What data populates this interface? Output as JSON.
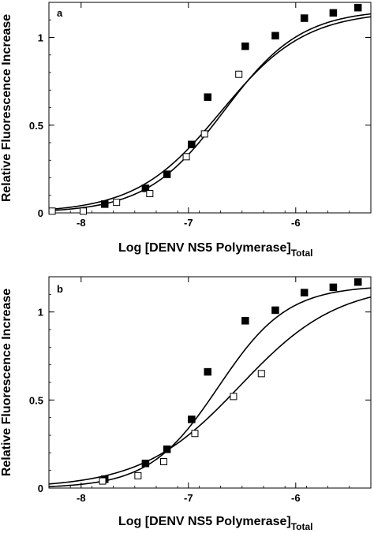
{
  "chart_data": [
    {
      "type": "scatter",
      "panel_label": "a",
      "xlabel": "Log [DENV NS5 Polymerase]",
      "xlabel_sub": "Total",
      "ylabel": "Relative Fluorescence Increase",
      "xlim": [
        -8.3,
        -5.3
      ],
      "ylim": [
        0,
        1.2
      ],
      "xticks": [
        -8,
        -7,
        -6
      ],
      "xticklabels": [
        "-8",
        "-7",
        "-6"
      ],
      "yticks": [
        0,
        0.5,
        1
      ],
      "yticklabels": [
        "0",
        "0.5",
        "1"
      ],
      "grid": false,
      "series": [
        {
          "marker": "filled-square",
          "color": "#000000",
          "x": [
            -7.78,
            -7.4,
            -7.2,
            -6.97,
            -6.82,
            -6.47,
            -6.19,
            -5.92,
            -5.65,
            -5.42
          ],
          "y": [
            0.05,
            0.14,
            0.22,
            0.39,
            0.66,
            0.95,
            1.01,
            1.11,
            1.14,
            1.17
          ],
          "fit": {
            "kind": "binding",
            "top": 1.15,
            "bottom": 0.0,
            "logK": -6.7,
            "hill": 1.1
          }
        },
        {
          "marker": "open-square",
          "color": "#000000",
          "x": [
            -8.27,
            -7.98,
            -7.67,
            -7.36,
            -7.02,
            -6.85,
            -6.53
          ],
          "y": [
            0.01,
            0.01,
            0.06,
            0.11,
            0.32,
            0.45,
            0.79
          ],
          "fit": {
            "kind": "binding",
            "top": 1.16,
            "bottom": 0.0,
            "logK": -6.67,
            "hill": 1.2
          }
        }
      ]
    },
    {
      "type": "scatter",
      "panel_label": "b",
      "xlabel": "Log [DENV NS5 Polymerase]",
      "xlabel_sub": "Total",
      "ylabel": "Relative Fluorescence Increase",
      "xlim": [
        -8.3,
        -5.3
      ],
      "ylim": [
        0,
        1.2
      ],
      "xticks": [
        -8,
        -7,
        -6
      ],
      "xticklabels": [
        "-8",
        "-7",
        "-6"
      ],
      "yticks": [
        0,
        0.5,
        1
      ],
      "yticklabels": [
        "0",
        "0.5",
        "1"
      ],
      "grid": false,
      "series": [
        {
          "marker": "filled-square",
          "color": "#000000",
          "x": [
            -7.78,
            -7.4,
            -7.2,
            -6.97,
            -6.82,
            -6.47,
            -6.19,
            -5.92,
            -5.65,
            -5.42
          ],
          "y": [
            0.05,
            0.14,
            0.22,
            0.39,
            0.66,
            0.95,
            1.01,
            1.11,
            1.14,
            1.17
          ],
          "fit": {
            "kind": "binding",
            "top": 1.15,
            "bottom": 0.0,
            "logK": -6.72,
            "hill": 1.35
          }
        },
        {
          "marker": "open-square",
          "color": "#000000",
          "x": [
            -7.8,
            -7.47,
            -7.23,
            -6.94,
            -6.58,
            -6.32
          ],
          "y": [
            0.04,
            0.07,
            0.15,
            0.31,
            0.52,
            0.65
          ],
          "fit": {
            "kind": "binding",
            "top": 1.16,
            "bottom": 0.0,
            "logK": -6.52,
            "hill": 0.95
          }
        }
      ]
    }
  ]
}
